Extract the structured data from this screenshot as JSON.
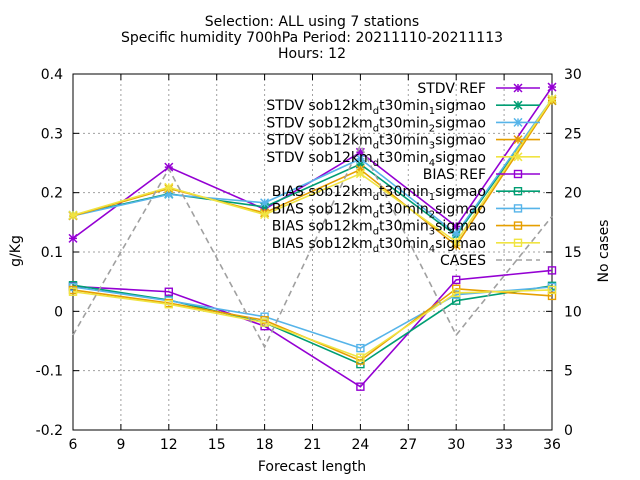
{
  "chart_data": {
    "type": "line",
    "title_lines": [
      "Selection: ALL using      7 stations",
      "Specific humidity 700hPa   Period: 20211110-20211113",
      "Hours: 12"
    ],
    "xlabel": "Forecast length",
    "ylabel": "g/Kg",
    "y2label": "No cases",
    "x": [
      6,
      12,
      18,
      24,
      30,
      36
    ],
    "xticks": [
      6,
      9,
      12,
      15,
      18,
      21,
      24,
      27,
      30,
      33,
      36
    ],
    "xlim": [
      6,
      36
    ],
    "ylim": [
      -0.2,
      0.4
    ],
    "yticks": [
      -0.2,
      -0.1,
      0,
      0.1,
      0.2,
      0.3,
      0.4
    ],
    "y2lim": [
      0,
      30
    ],
    "y2ticks": [
      0,
      5,
      10,
      15,
      20,
      25,
      30
    ],
    "grid": true,
    "legend_position": "top-right",
    "series": [
      {
        "name": "STDV REF",
        "axis": "y",
        "marker": "x-star",
        "color": "#9400d3",
        "values": [
          0.123,
          0.243,
          0.172,
          0.268,
          0.143,
          0.378
        ]
      },
      {
        "name": "STDV sob12km_{d}t30min_{1}sigmao",
        "axis": "y",
        "marker": "x-star",
        "color": "#009e73",
        "values": [
          0.162,
          0.198,
          0.176,
          0.248,
          0.128,
          0.355
        ]
      },
      {
        "name": "STDV sob12km_{d}t30min_{2}sigmao",
        "axis": "y",
        "marker": "x-star",
        "color": "#56b4e9",
        "values": [
          0.161,
          0.197,
          0.183,
          0.257,
          0.131,
          0.358
        ]
      },
      {
        "name": "STDV sob12km_{d}t30min_{3}sigmao",
        "axis": "y",
        "marker": "x-star",
        "color": "#e69f00",
        "values": [
          0.161,
          0.207,
          0.166,
          0.239,
          0.111,
          0.355
        ]
      },
      {
        "name": "STDV sob12km_{d}t30min_{4}sigmao",
        "axis": "y",
        "marker": "x-star",
        "color": "#f0e442",
        "values": [
          0.162,
          0.209,
          0.163,
          0.232,
          0.117,
          0.358
        ]
      },
      {
        "name": "BIAS REF",
        "axis": "y",
        "marker": "square",
        "color": "#9400d3",
        "values": [
          0.042,
          0.033,
          -0.025,
          -0.127,
          0.053,
          0.069
        ]
      },
      {
        "name": "BIAS sob12km_{d}t30min_{1}sigmao",
        "axis": "y",
        "marker": "square",
        "color": "#009e73",
        "values": [
          0.044,
          0.019,
          -0.019,
          -0.089,
          0.018,
          0.043
        ]
      },
      {
        "name": "BIAS sob12km_{d}t30min_{2}sigmao",
        "axis": "y",
        "marker": "square",
        "color": "#56b4e9",
        "values": [
          0.041,
          0.018,
          -0.009,
          -0.062,
          0.028,
          0.041
        ]
      },
      {
        "name": "BIAS sob12km_{d}t30min_{3}sigmao",
        "axis": "y",
        "marker": "square",
        "color": "#e69f00",
        "values": [
          0.036,
          0.014,
          -0.015,
          -0.083,
          0.038,
          0.026
        ]
      },
      {
        "name": "BIAS sob12km_{d}t30min_{4}sigmao",
        "axis": "y",
        "marker": "square",
        "color": "#f0e442",
        "values": [
          0.033,
          0.012,
          -0.019,
          -0.078,
          0.031,
          0.036
        ]
      },
      {
        "name": "CASES",
        "axis": "y2",
        "marker": "none",
        "color": "#a0a0a0",
        "dashed": true,
        "values": [
          8,
          22,
          7,
          24,
          8,
          18
        ]
      }
    ]
  }
}
